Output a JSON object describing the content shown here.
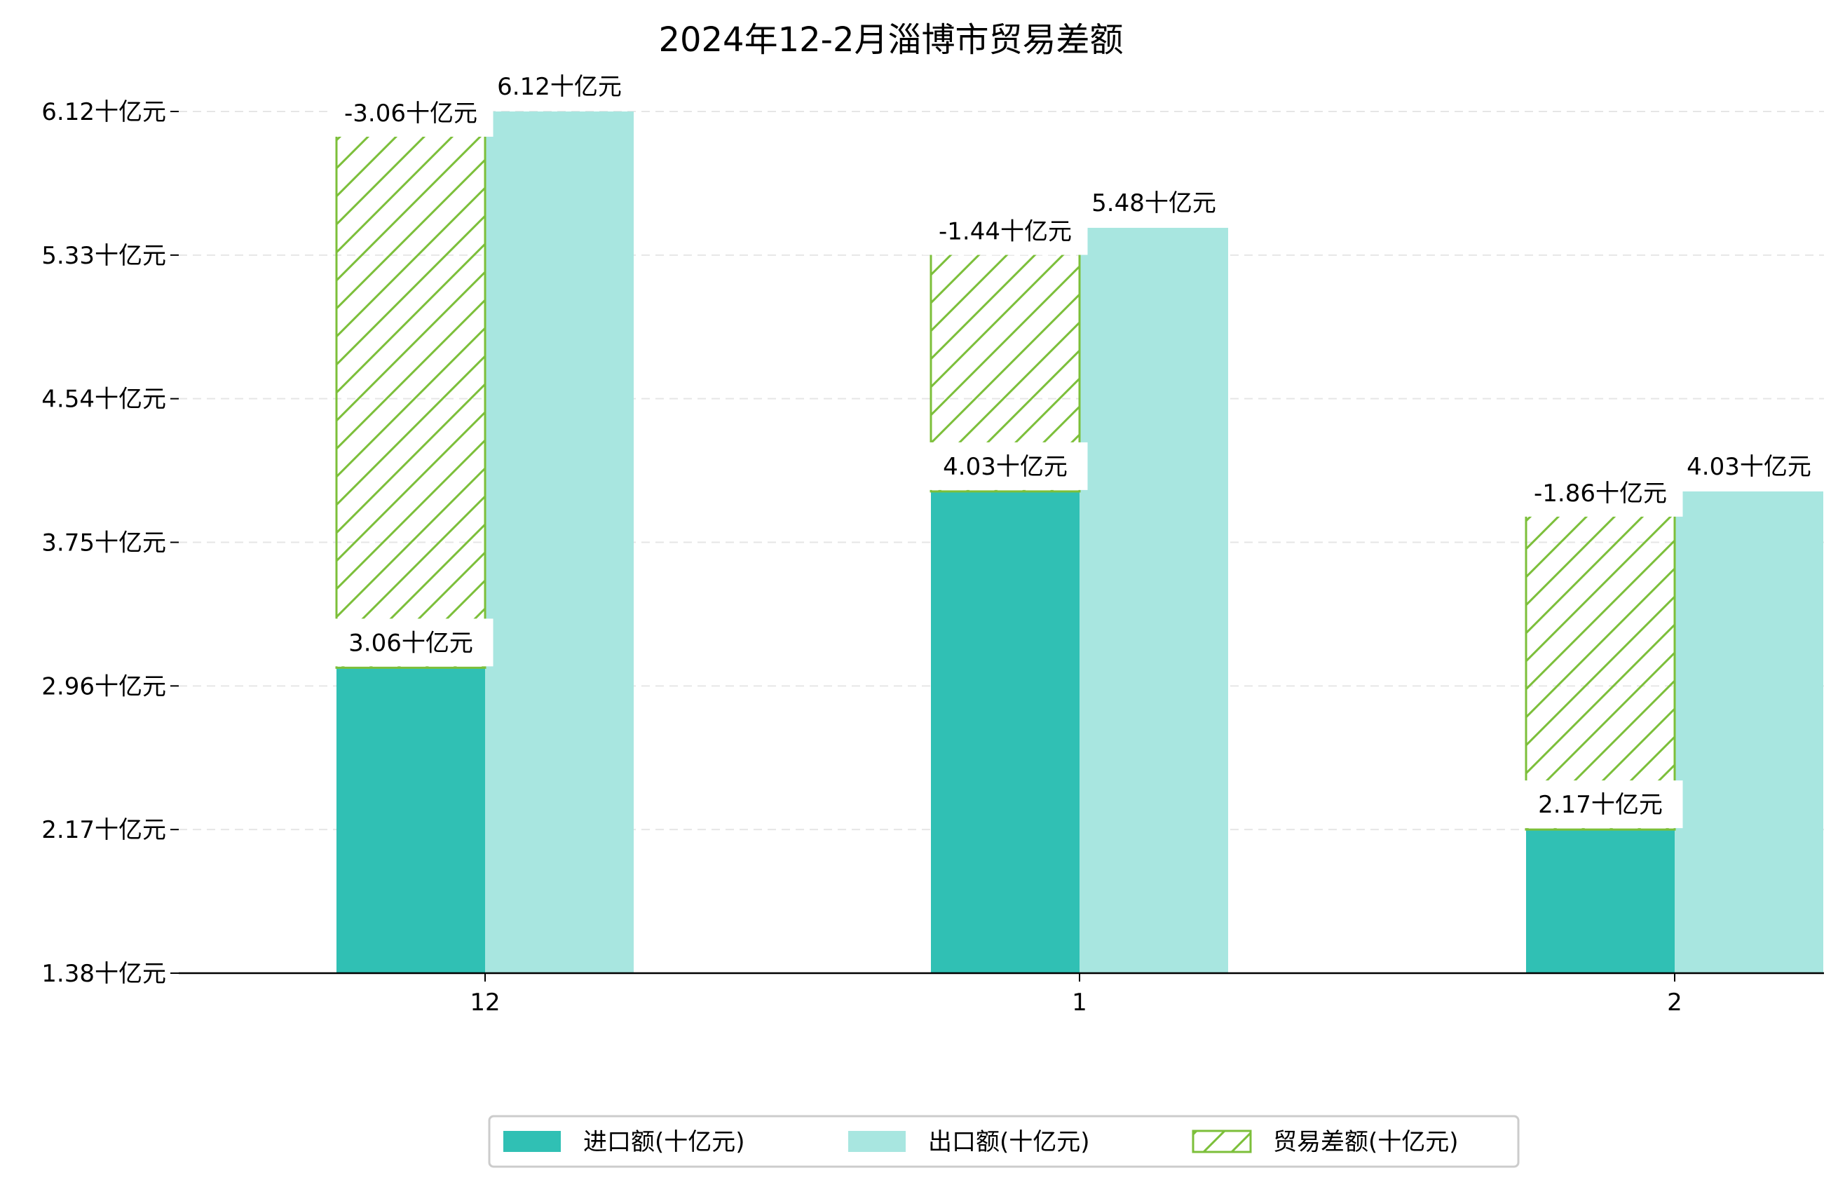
{
  "chart_data": {
    "type": "bar",
    "title": "2024年12-2月淄博市贸易差额",
    "categories": [
      "12",
      "1",
      "2"
    ],
    "y_ticks": [
      "1.38十亿元",
      "2.17十亿元",
      "2.96十亿元",
      "3.75十亿元",
      "4.54十亿元",
      "5.33十亿元",
      "6.12十亿元"
    ],
    "ylim": [
      1.38,
      6.12
    ],
    "grid": "horizontal dashed",
    "legend_position": "bottom-center",
    "series": [
      {
        "name": "进口额(十亿元)",
        "values": [
          3.06,
          4.03,
          2.17
        ],
        "labels": [
          "3.06十亿元",
          "4.03十亿元",
          "2.17十亿元"
        ],
        "color": "#30c0b4"
      },
      {
        "name": "出口额(十亿元)",
        "values": [
          6.12,
          5.48,
          4.03
        ],
        "labels": [
          "6.12十亿元",
          "5.48十亿元",
          "4.03十亿元"
        ],
        "color": "#a8e6e0"
      },
      {
        "name": "贸易差额(十亿元)",
        "values": [
          -3.06,
          -1.44,
          -1.86
        ],
        "labels": [
          "-3.06十亿元",
          "-1.44十亿元",
          "-1.86十亿元"
        ],
        "color": "#7cbf3a"
      }
    ]
  }
}
